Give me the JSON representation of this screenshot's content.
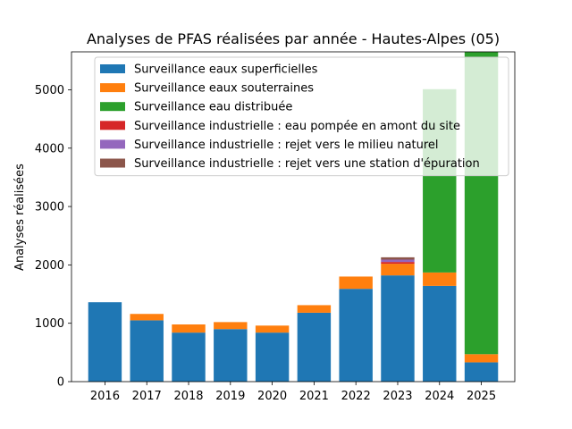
{
  "chart_data": {
    "type": "bar",
    "stacked": true,
    "title": "Analyses de PFAS réalisées par année - Hautes-Alpes (05)",
    "xlabel": "",
    "ylabel": "Analyses réalisées",
    "categories": [
      "2016",
      "2017",
      "2018",
      "2019",
      "2020",
      "2021",
      "2022",
      "2023",
      "2024",
      "2025"
    ],
    "ylim": [
      0,
      5650
    ],
    "yticks": [
      0,
      1000,
      2000,
      3000,
      4000,
      5000
    ],
    "grid": false,
    "legend_position": "top-center",
    "series": [
      {
        "name": "Surveillance eaux superficielles",
        "color": "#1f77b4",
        "values": [
          1360,
          1050,
          840,
          900,
          840,
          1180,
          1590,
          1820,
          1640,
          330
        ]
      },
      {
        "name": "Surveillance eaux souterraines",
        "color": "#ff7f0e",
        "values": [
          0,
          110,
          140,
          120,
          120,
          130,
          210,
          200,
          230,
          140
        ]
      },
      {
        "name": "Surveillance eau distribuée",
        "color": "#2ca02c",
        "values": [
          0,
          0,
          0,
          0,
          0,
          0,
          0,
          0,
          3140,
          5280
        ]
      },
      {
        "name": "Surveillance industrielle : eau pompée en amont du site",
        "color": "#d62728",
        "values": [
          0,
          0,
          0,
          0,
          0,
          0,
          0,
          30,
          0,
          0
        ]
      },
      {
        "name": "Surveillance industrielle : rejet vers le milieu naturel",
        "color": "#9467bd",
        "values": [
          0,
          0,
          0,
          0,
          0,
          0,
          0,
          40,
          0,
          0
        ]
      },
      {
        "name": "Surveillance industrielle : rejet vers une station d'épuration",
        "color": "#8c564b",
        "values": [
          0,
          0,
          0,
          0,
          0,
          0,
          0,
          40,
          0,
          0
        ]
      }
    ]
  }
}
